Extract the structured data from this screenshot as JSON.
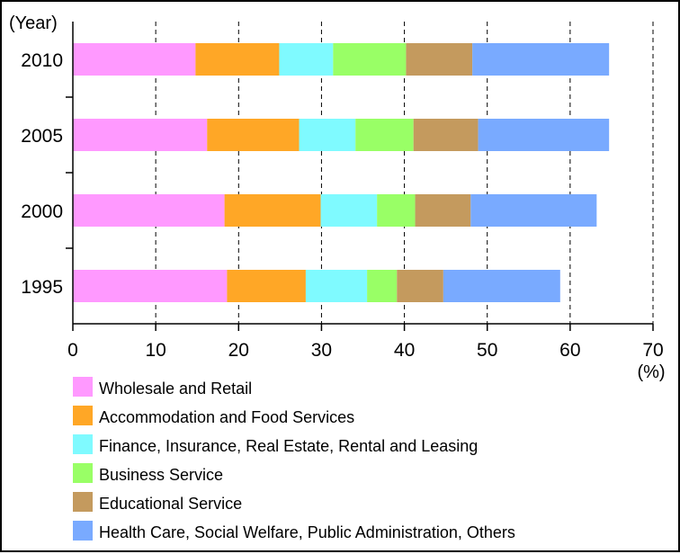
{
  "chart_data": {
    "type": "bar",
    "orientation": "horizontal",
    "stacked": true,
    "y_axis_unit": "(Year)",
    "x_axis_unit": "(%)",
    "categories": [
      "2010",
      "2005",
      "2000",
      "1995"
    ],
    "xlim": [
      0,
      70
    ],
    "x_ticks": [
      "0",
      "10",
      "20",
      "30",
      "40",
      "50",
      "60",
      "70"
    ],
    "grid": "vertical dashed",
    "legend_position": "bottom-left",
    "series": [
      {
        "name": "Wholesale and Retail",
        "color": "#ff99ff",
        "values": [
          14.8,
          16.2,
          18.3,
          18.6
        ]
      },
      {
        "name": "Accommodation and Food Services",
        "color": "#ffa726",
        "values": [
          10.1,
          11.1,
          11.6,
          9.5
        ]
      },
      {
        "name": "Finance, Insurance, Real Estate, Rental and Leasing",
        "color": "#7ffaff",
        "values": [
          6.5,
          6.8,
          6.8,
          7.4
        ]
      },
      {
        "name": "Business Service",
        "color": "#99ff66",
        "values": [
          8.8,
          7.0,
          4.6,
          3.6
        ]
      },
      {
        "name": "Educational Service",
        "color": "#c49a5e",
        "values": [
          8.0,
          7.8,
          6.7,
          5.6
        ]
      },
      {
        "name": "Health Care, Social Welfare, Public Administration, Others",
        "color": "#79aaff",
        "values": [
          16.5,
          15.8,
          15.2,
          14.1
        ]
      }
    ]
  }
}
